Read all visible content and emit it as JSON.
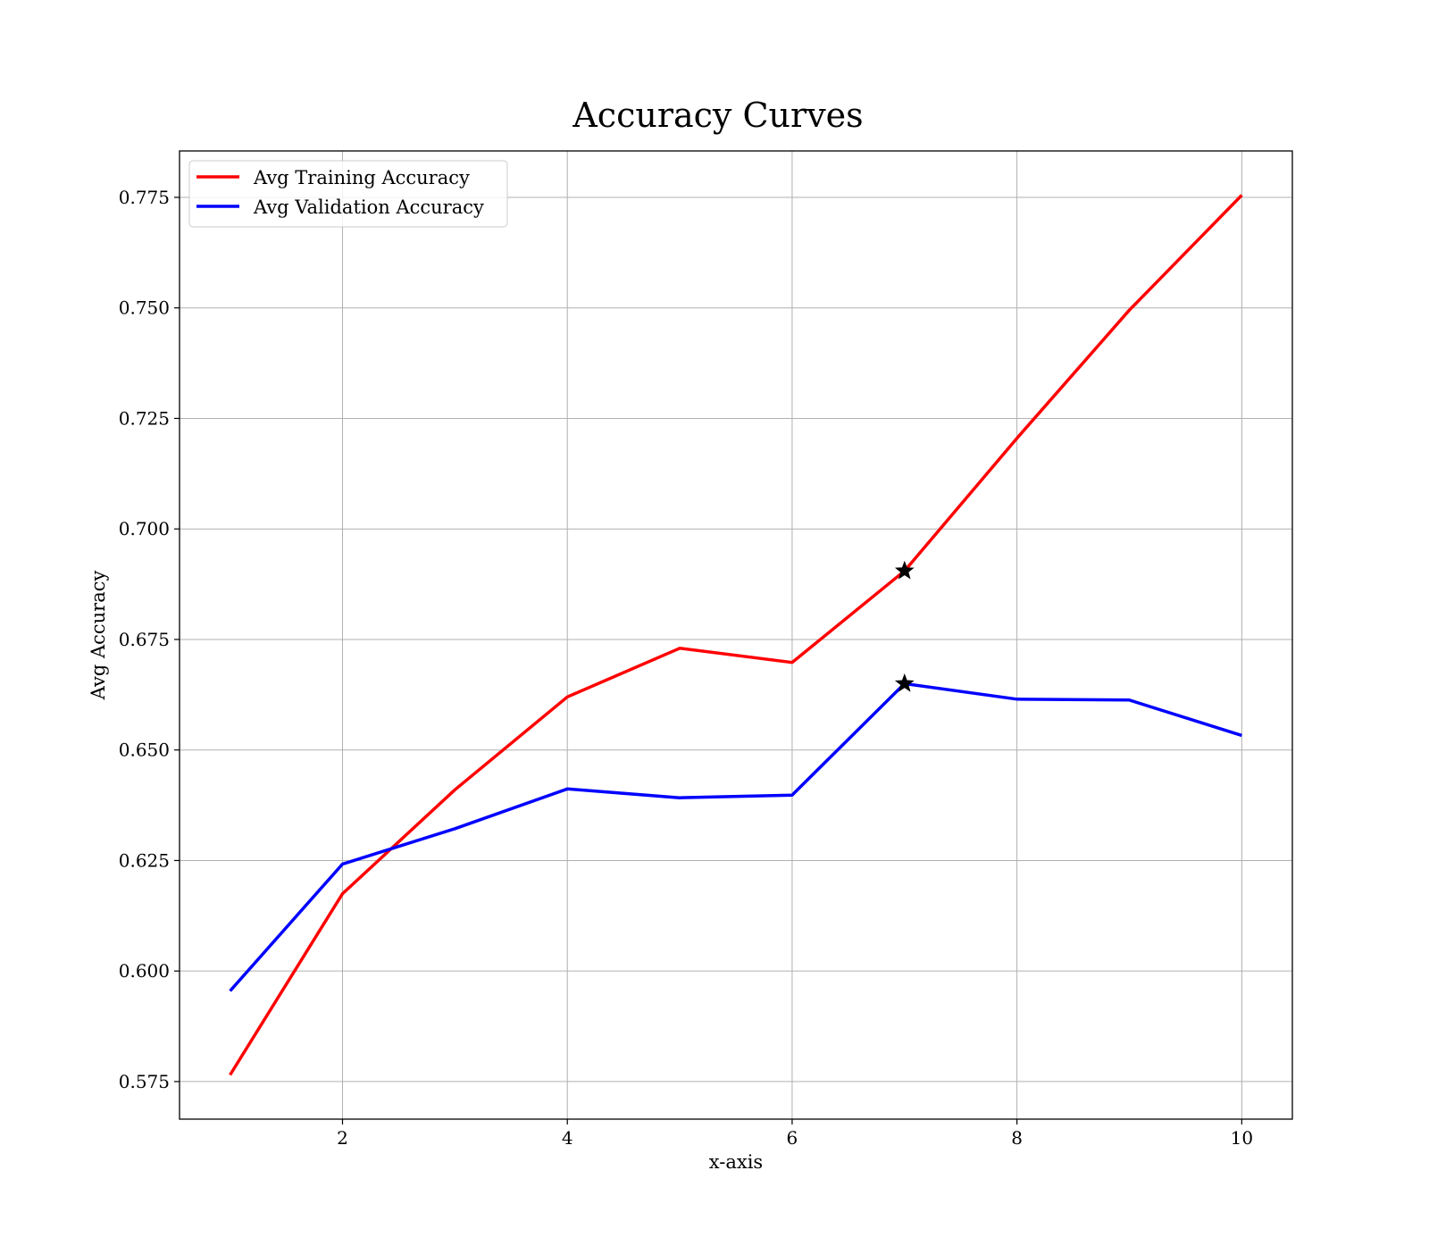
{
  "chart_data": {
    "type": "line",
    "title": "Accuracy Curves",
    "xlabel": "x-axis",
    "ylabel": "Avg Accuracy",
    "x": [
      1,
      2,
      3,
      4,
      5,
      6,
      7,
      8,
      9,
      10
    ],
    "xlim": [
      0.55,
      10.45
    ],
    "ylim": [
      0.5665,
      0.7855
    ],
    "xticks": [
      2,
      4,
      6,
      8,
      10
    ],
    "yticks": [
      0.575,
      0.6,
      0.625,
      0.65,
      0.675,
      0.7,
      0.725,
      0.75,
      0.775
    ],
    "xtick_labels": [
      "2",
      "4",
      "6",
      "8",
      "10"
    ],
    "ytick_labels": [
      "0.575",
      "0.600",
      "0.625",
      "0.650",
      "0.675",
      "0.700",
      "0.725",
      "0.750",
      "0.775"
    ],
    "grid": true,
    "legend_position": "top-left",
    "series": [
      {
        "name": "Avg Training Accuracy",
        "color": "#ff0000",
        "values": [
          0.5765,
          0.6175,
          0.641,
          0.662,
          0.673,
          0.6698,
          0.6905,
          0.7205,
          0.7495,
          0.7755
        ]
      },
      {
        "name": "Avg Validation Accuracy",
        "color": "#0000ff",
        "values": [
          0.5955,
          0.6242,
          0.6322,
          0.6412,
          0.6392,
          0.6398,
          0.665,
          0.6615,
          0.6613,
          0.6533
        ]
      }
    ],
    "markers": [
      {
        "series": "Avg Training Accuracy",
        "x": 7,
        "y": 0.6905,
        "shape": "star",
        "color": "#000000"
      },
      {
        "series": "Avg Validation Accuracy",
        "x": 7,
        "y": 0.665,
        "shape": "star",
        "color": "#000000"
      }
    ]
  }
}
